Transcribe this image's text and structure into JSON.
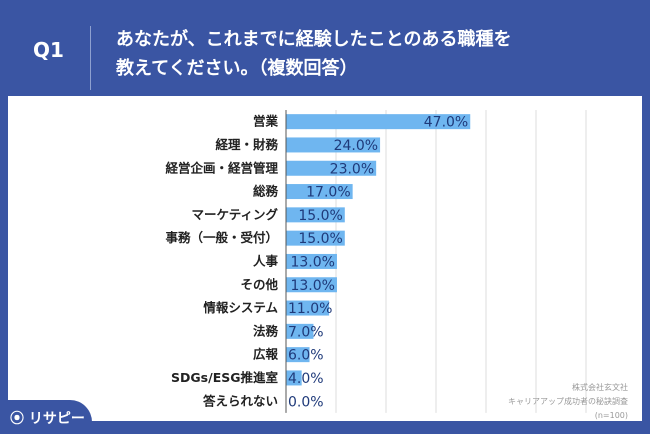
{
  "header": {
    "q_label": "Q1",
    "title_line1": "あなたが、これまでに経験したことのある職種を",
    "title_line2": "教えてください。（複数回答）"
  },
  "source": {
    "line1": "株式会社玄文社",
    "line2": "キャリアアップ成功者の秘訣調査",
    "line3": "(n=100)"
  },
  "logo": {
    "text": "リサピー"
  },
  "colors": {
    "background": "#3a55a3",
    "bar": "#6fb6f0",
    "value_text": "#1f3a7a"
  },
  "chart_data": {
    "type": "bar",
    "orientation": "horizontal",
    "grid": true,
    "categories": [
      "営業",
      "経理・財務",
      "経営企画・経営管理",
      "総務",
      "マーケティング",
      "事務（一般・受付）",
      "人事",
      "その他",
      "情報システム",
      "法務",
      "広報",
      "SDGs/ESG推進室",
      "答えられない"
    ],
    "values": [
      47.0,
      24.0,
      23.0,
      17.0,
      15.0,
      15.0,
      13.0,
      13.0,
      11.0,
      7.0,
      6.0,
      4.0,
      0.0
    ],
    "value_labels": [
      "47.0%",
      "24.0%",
      "23.0%",
      "17.0%",
      "15.0%",
      "15.0%",
      "13.0%",
      "13.0%",
      "11.0%",
      "7.0%",
      "6.0%",
      "4.0%",
      "0.0%"
    ]
  }
}
